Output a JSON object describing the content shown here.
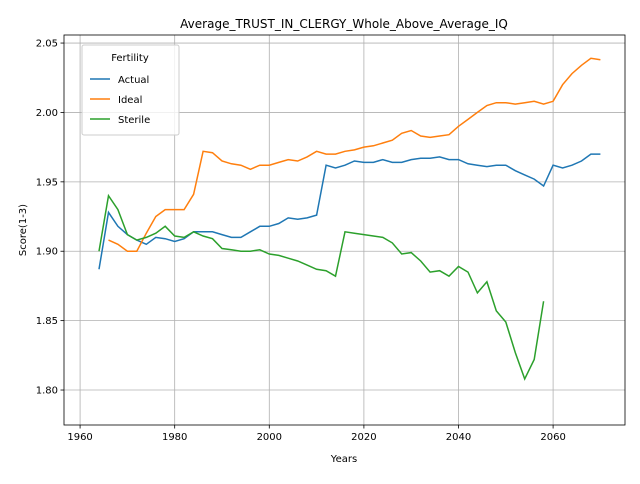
{
  "chart_data": {
    "type": "line",
    "title": "Average_TRUST_IN_CLERGY_Whole_Above_Average_IQ",
    "x_label": "Years",
    "y_label": "Score(1-3)",
    "x": [
      1964,
      1966,
      1968,
      1970,
      1972,
      1974,
      1976,
      1978,
      1980,
      1982,
      1984,
      1986,
      1988,
      1990,
      1992,
      1994,
      1996,
      1998,
      2000,
      2002,
      2004,
      2006,
      2008,
      2010,
      2012,
      2014,
      2016,
      2018,
      2020,
      2022,
      2024,
      2026,
      2028,
      2030,
      2032,
      2034,
      2036,
      2038,
      2040,
      2042,
      2044,
      2046,
      2048,
      2050,
      2052,
      2054,
      2056,
      2058,
      2060,
      2062,
      2064,
      2066,
      2068,
      2070
    ],
    "series": [
      {
        "name": "Actual",
        "color": "#1f77b4",
        "values": [
          1.887,
          1.928,
          1.918,
          1.912,
          1.908,
          1.905,
          1.91,
          1.909,
          1.907,
          1.909,
          1.914,
          1.914,
          1.914,
          1.912,
          1.91,
          1.91,
          1.914,
          1.918,
          1.918,
          1.92,
          1.924,
          1.923,
          1.924,
          1.926,
          1.962,
          1.96,
          1.962,
          1.965,
          1.964,
          1.964,
          1.966,
          1.964,
          1.964,
          1.966,
          1.967,
          1.967,
          1.968,
          1.966,
          1.966,
          1.963,
          1.962,
          1.961,
          1.962,
          1.962,
          1.958,
          1.955,
          1.952,
          1.947,
          1.962,
          1.96,
          1.962,
          1.965,
          1.97,
          1.97
        ]
      },
      {
        "name": "Ideal",
        "color": "#ff7f0e",
        "values": [
          null,
          1.908,
          1.905,
          1.9,
          1.9,
          1.913,
          1.925,
          1.93,
          1.93,
          1.93,
          1.941,
          1.972,
          1.971,
          1.965,
          1.963,
          1.962,
          1.959,
          1.962,
          1.962,
          1.964,
          1.966,
          1.965,
          1.968,
          1.972,
          1.97,
          1.97,
          1.972,
          1.973,
          1.975,
          1.976,
          1.978,
          1.98,
          1.985,
          1.987,
          1.983,
          1.982,
          1.983,
          1.984,
          1.99,
          1.995,
          2.0,
          2.005,
          2.007,
          2.007,
          2.006,
          2.007,
          2.008,
          2.006,
          2.008,
          2.02,
          2.028,
          2.034,
          2.039,
          2.038
        ]
      },
      {
        "name": "Sterile",
        "color": "#2ca02c",
        "values": [
          1.9,
          1.94,
          1.93,
          1.912,
          1.908,
          1.91,
          1.913,
          1.918,
          1.911,
          1.91,
          1.914,
          1.911,
          1.909,
          1.902,
          1.901,
          1.9,
          1.9,
          1.901,
          1.898,
          1.897,
          1.895,
          1.893,
          1.89,
          1.887,
          1.886,
          1.882,
          1.914,
          1.913,
          1.912,
          1.911,
          1.91,
          1.906,
          1.898,
          1.899,
          1.893,
          1.885,
          1.886,
          1.882,
          1.889,
          1.885,
          1.87,
          1.878,
          1.857,
          1.849,
          1.827,
          1.808,
          1.822,
          1.864,
          null,
          null,
          null,
          null,
          null,
          null
        ]
      }
    ],
    "xlim": [
      1956.6,
      2075.2
    ],
    "ylim": [
      1.7748,
      2.0558
    ],
    "xticks": [
      1960,
      1980,
      2000,
      2020,
      2040,
      2060
    ],
    "yticks": [
      {
        "value": 1.8,
        "label": "1.80"
      },
      {
        "value": 1.85,
        "label": "1.85"
      },
      {
        "value": 1.9,
        "label": "1.90"
      },
      {
        "value": 1.95,
        "label": "1.95"
      },
      {
        "value": 2.0,
        "label": "2.00"
      },
      {
        "value": 2.05,
        "label": "2.05"
      }
    ],
    "grid": true,
    "legend_title": "Fertility",
    "legend": "upper left"
  }
}
